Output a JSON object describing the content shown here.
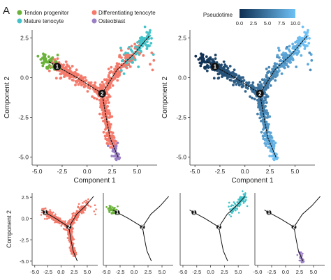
{
  "panel_label": "A",
  "colors": {
    "tendon_progenitor": "#6ab23a",
    "differentiating_tenocyte": "#f47a6b",
    "mature_tenocyte": "#43c3c9",
    "osteoblast": "#9b7fc4",
    "pseudotime_low": "#0f2f52",
    "pseudotime_high": "#6fc1f5",
    "trajectory": "#111111"
  },
  "legend": {
    "items": [
      {
        "label": "Tendon progenitor",
        "color_key": "tendon_progenitor"
      },
      {
        "label": "Differentiating tenocyte",
        "color_key": "differentiating_tenocyte"
      },
      {
        "label": "Mature tenocyte",
        "color_key": "mature_tenocyte"
      },
      {
        "label": "Osteoblast",
        "color_key": "osteoblast"
      }
    ]
  },
  "colorbar": {
    "title": "Pseudotime",
    "ticks": [
      "0.0",
      "2.5",
      "5.0",
      "7.5",
      "10.0"
    ]
  },
  "chart_data": [
    {
      "type": "scatter",
      "id": "state",
      "xlabel": "Component 1",
      "ylabel": "Component 2",
      "xlim": [
        -5.5,
        7
      ],
      "ylim": [
        -5.5,
        3
      ],
      "xticks": [
        "-5.0",
        "-2.5",
        "0.0",
        "2.5",
        "5.0"
      ],
      "yticks": [
        "2.5",
        "0.0",
        "-2.5",
        "-5.0"
      ],
      "branch_points": [
        {
          "label": "1",
          "x": -3.0,
          "y": 0.7
        },
        {
          "label": "2",
          "x": 1.5,
          "y": -1.0
        }
      ],
      "trajectory": [
        [
          [
            -3.8,
            1.0
          ],
          [
            -3.0,
            0.7
          ],
          [
            -1.0,
            0.0
          ],
          [
            1.5,
            -1.0
          ]
        ],
        [
          [
            1.5,
            -1.0
          ],
          [
            3.0,
            0.5
          ],
          [
            4.7,
            1.5
          ],
          [
            6.2,
            2.6
          ]
        ],
        [
          [
            1.5,
            -1.0
          ],
          [
            1.9,
            -2.5
          ],
          [
            2.3,
            -3.8
          ],
          [
            3.1,
            -5.0
          ]
        ]
      ]
    },
    {
      "type": "scatter",
      "id": "pseudotime",
      "xlabel": "Component 1",
      "ylabel": "Component 2",
      "xlim": [
        -5.5,
        7
      ],
      "ylim": [
        -5.5,
        3
      ],
      "xticks": [
        "-5.0",
        "-2.5",
        "0.0",
        "2.5",
        "5.0"
      ],
      "yticks": [
        "2.5",
        "0.0",
        "-2.5",
        "-5.0"
      ],
      "color_range": [
        0,
        10
      ]
    },
    {
      "type": "scatter",
      "id": "facet-differentiating",
      "ylabel": "Component 2",
      "xticks": [
        "-5.0",
        "-2.5",
        "0.0",
        "2.5",
        "5.0"
      ],
      "yticks": [
        "2.5",
        "0.0",
        "-2.5",
        "-5.0"
      ],
      "highlight": "differentiating_tenocyte"
    },
    {
      "type": "scatter",
      "id": "facet-progenitor",
      "xticks": [
        "-5.0",
        "-2.5",
        "0.0",
        "2.5",
        "5.0"
      ],
      "highlight": "tendon_progenitor"
    },
    {
      "type": "scatter",
      "id": "facet-mature",
      "xticks": [
        "-5.0",
        "-2.5",
        "0.0",
        "2.5",
        "5.0"
      ],
      "highlight": "mature_tenocyte"
    },
    {
      "type": "scatter",
      "id": "facet-osteoblast",
      "xticks": [
        "-5.0",
        "-2.5",
        "0.0",
        "2.5",
        "5.0"
      ],
      "highlight": "osteoblast"
    }
  ]
}
